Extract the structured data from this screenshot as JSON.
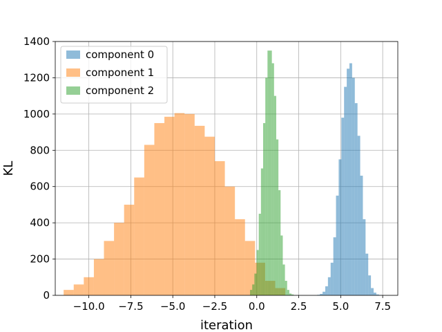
{
  "chart_data": {
    "type": "histogram",
    "title": "",
    "xlabel": "iteration",
    "ylabel": "KL",
    "xlim": [
      -12.0,
      8.4
    ],
    "ylim": [
      0,
      1400
    ],
    "xticks": [
      -10.0,
      -7.5,
      -5.0,
      -2.5,
      0.0,
      2.5,
      5.0,
      7.5
    ],
    "xtick_labels": [
      "−10.0",
      "−7.5",
      "−5.0",
      "−2.5",
      "0.0",
      "2.5",
      "5.0",
      "7.5"
    ],
    "yticks": [
      0,
      200,
      400,
      600,
      800,
      1000,
      1200,
      1400
    ],
    "ytick_labels": [
      "0",
      "200",
      "400",
      "600",
      "800",
      "1000",
      "1200",
      "1400"
    ],
    "grid": true,
    "legend_position": "top-left",
    "series": [
      {
        "name": "component 0",
        "color": "#1f77b4",
        "alpha": 0.5,
        "bin_start": 3.6,
        "bin_width": 0.16,
        "counts": [
          3,
          8,
          20,
          50,
          100,
          180,
          320,
          550,
          750,
          980,
          1150,
          1250,
          1280,
          1200,
          1060,
          880,
          660,
          420,
          230,
          110,
          40,
          15,
          5,
          2
        ]
      },
      {
        "name": "component 1",
        "color": "#ff7f0e",
        "alpha": 0.5,
        "bin_start": -11.5,
        "bin_width": 0.6,
        "counts": [
          30,
          60,
          100,
          200,
          300,
          400,
          500,
          650,
          830,
          950,
          985,
          1005,
          1000,
          935,
          875,
          740,
          600,
          420,
          300,
          180,
          80,
          40
        ]
      },
      {
        "name": "component 2",
        "color": "#2ca02c",
        "alpha": 0.5,
        "bin_start": -0.4,
        "bin_width": 0.13,
        "counts": [
          30,
          60,
          120,
          250,
          450,
          700,
          950,
          1200,
          1350,
          1350,
          1280,
          1100,
          860,
          580,
          330,
          170,
          80,
          30,
          10,
          5
        ]
      }
    ]
  }
}
